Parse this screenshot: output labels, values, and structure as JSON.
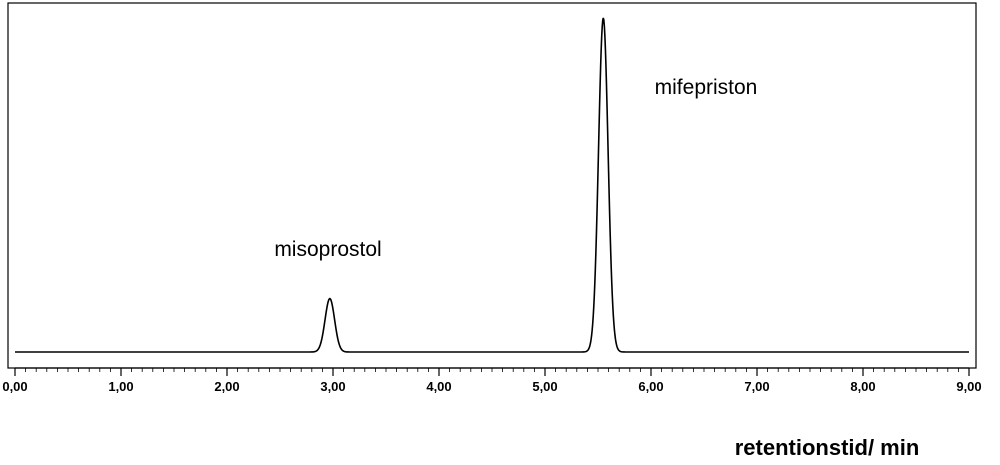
{
  "chart_data": {
    "type": "line",
    "title": "",
    "xlabel": "retentionstid/ min",
    "ylabel": "",
    "xlim": [
      0,
      9
    ],
    "ylim": [
      0,
      1
    ],
    "grid": false,
    "x_ticks": [
      "0,00",
      "1,00",
      "2,00",
      "3,00",
      "4,00",
      "5,00",
      "6,00",
      "7,00",
      "8,00",
      "9,00"
    ],
    "x_tick_values": [
      0,
      1,
      2,
      3,
      4,
      5,
      6,
      7,
      8,
      9
    ],
    "baseline": 0.02,
    "series": [
      {
        "peaks": [
          {
            "label": "misoprostol",
            "retention_time": 2.97,
            "height": 0.16,
            "width": 0.045
          },
          {
            "label": "mifepriston",
            "retention_time": 5.55,
            "height": 1.0,
            "width": 0.045
          }
        ]
      }
    ],
    "annotations": [
      {
        "text": "misoprostol",
        "x": 2.97
      },
      {
        "text": "mifepriston",
        "x": 5.55
      }
    ],
    "line_color": "#000000"
  }
}
